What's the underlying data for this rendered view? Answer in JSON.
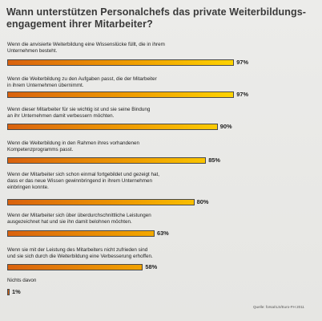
{
  "chart_data": {
    "type": "bar",
    "orientation": "horizontal",
    "title": "Wann unterstützen Personalchefs das private Weiterbildungs-engagement ihrer Mitarbeiter?",
    "title_lines": [
      "Wann unterstützen Personalchefs das private Weiterbildungs-",
      "engagement ihrer Mitarbeiter?"
    ],
    "value_suffix": "%",
    "xlim": [
      0,
      100
    ],
    "grid": false,
    "legend": "none",
    "bar_gradient": [
      "#d9620f",
      "#f0a000",
      "#ffd800"
    ],
    "items": [
      {
        "label_lines": [
          "Wenn die anvisierte Weiterbildung eine Wissenslücke füllt, die in ihrem",
          "Unternehmen besteht."
        ],
        "value": 97,
        "value_label": "97%"
      },
      {
        "label_lines": [
          "Wenn die Weiterbildung zu den Aufgaben passt, die der Mitarbeiter",
          "in ihrem Unternehmen übernimmt."
        ],
        "value": 97,
        "value_label": "97%"
      },
      {
        "label_lines": [
          "Wenn dieser Mitarbeiter für sie wichtig ist und sie seine Bindung",
          "an ihr Unternehmen damit verbessern möchten."
        ],
        "value": 90,
        "value_label": "90%"
      },
      {
        "label_lines": [
          "Wenn die Weiterbildung in den Rahmen ihres vorhandenen",
          "Kompetenzprogramms passt."
        ],
        "value": 85,
        "value_label": "85%"
      },
      {
        "label_lines": [
          "Wenn der Mitarbeiter sich schon einmal fortgebildet und gezeigt hat,",
          "dass er das neue Wissen gewinnbringend in ihrem Unternehmen",
          "einbringen konnte."
        ],
        "value": 80,
        "value_label": "80%"
      },
      {
        "label_lines": [
          "Wenn der Mitarbeiter sich über überdurchschnittliche Leistungen",
          "ausgezeichnet hat und sie ihn damit belohnen möchten."
        ],
        "value": 63,
        "value_label": "63%"
      },
      {
        "label_lines": [
          "Wenn sie mit der Leistung des Mitarbeiters nicht zufrieden sind",
          "und sie sich durch die Weiterbildung eine Verbesserung erhoffen."
        ],
        "value": 58,
        "value_label": "58%"
      },
      {
        "label_lines": [
          "Nichts davon"
        ],
        "value": 1,
        "value_label": "1%"
      }
    ],
    "source": "Quelle: forsa/ILS/Euro-FH 2011"
  }
}
